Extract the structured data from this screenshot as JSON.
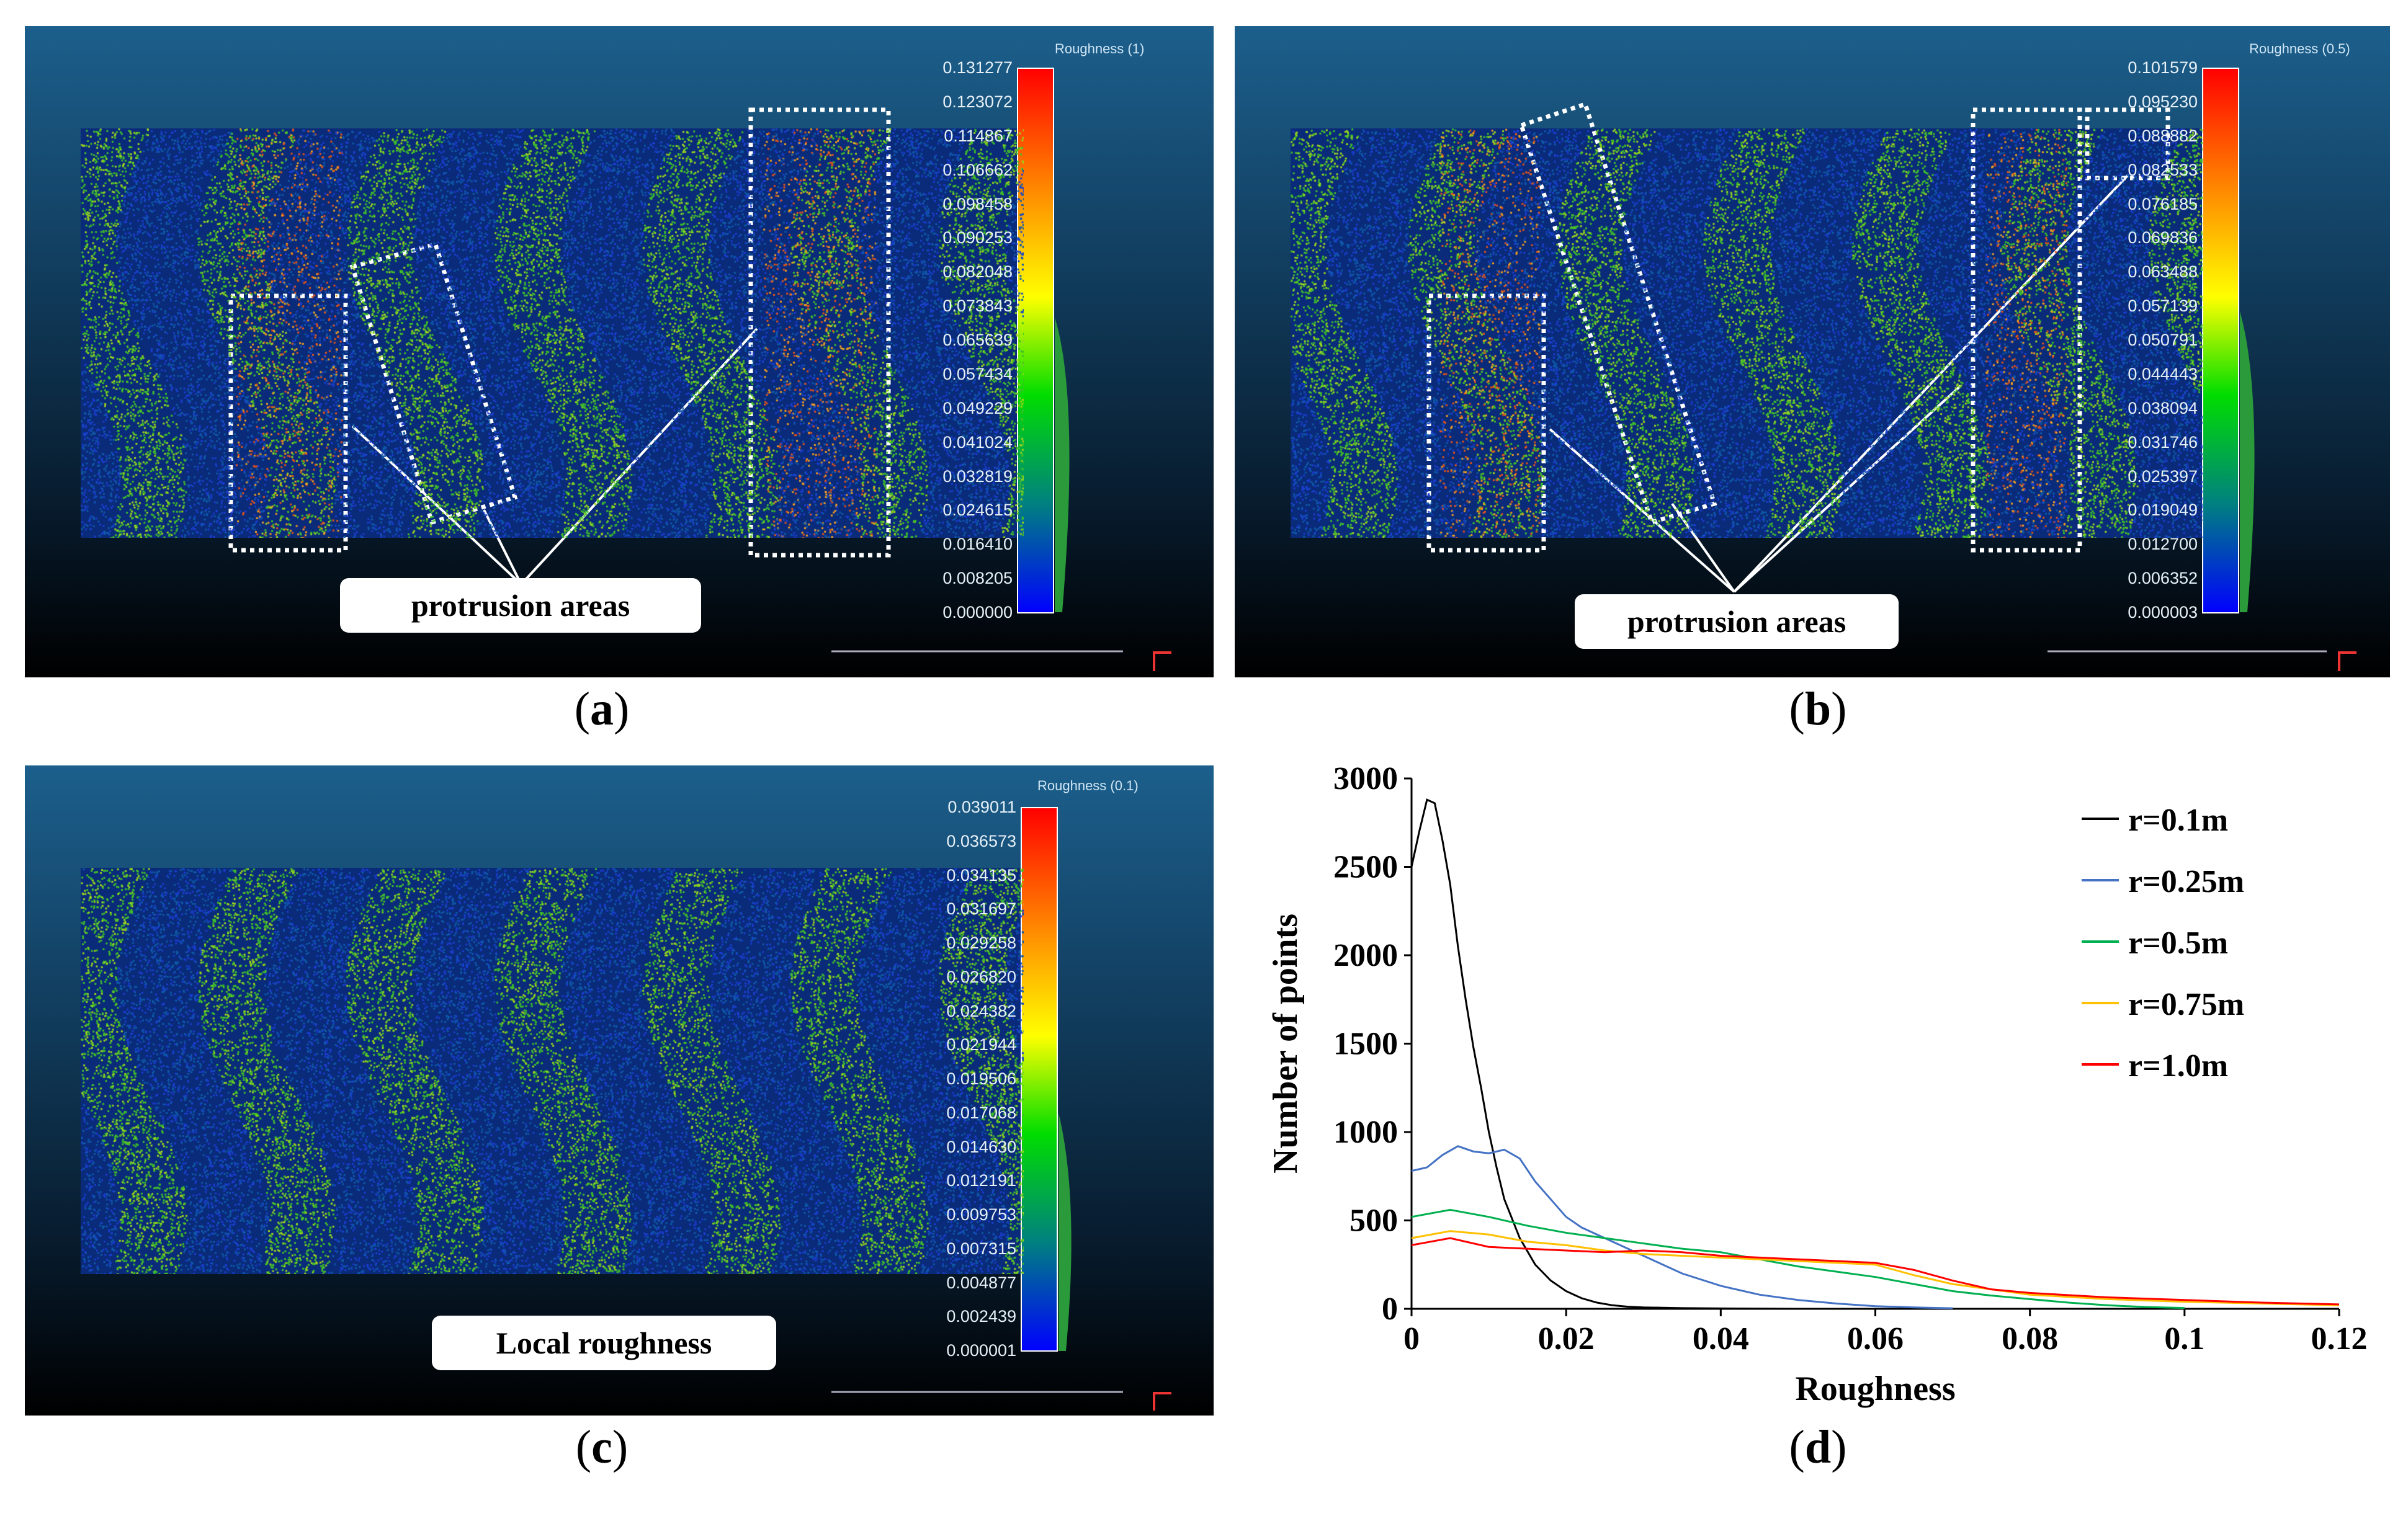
{
  "panels": {
    "a": {
      "caption_letter": "a",
      "colorbar_title": "Roughness (1)",
      "ticks": [
        "0.131277",
        "0.123072",
        "0.114867",
        "0.106662",
        "0.098458",
        "0.090253",
        "0.082048",
        "0.073843",
        "0.065639",
        "0.057434",
        "0.049229",
        "0.041024",
        "0.032819",
        "0.024615",
        "0.016410",
        "0.008205",
        "0.000000"
      ],
      "callout": "protrusion areas"
    },
    "b": {
      "caption_letter": "b",
      "colorbar_title": "Roughness (0.5)",
      "ticks": [
        "0.101579",
        "0.095230",
        "0.088882",
        "0.082533",
        "0.076185",
        "0.069836",
        "0.063488",
        "0.057139",
        "0.050791",
        "0.044443",
        "0.038094",
        "0.031746",
        "0.025397",
        "0.019049",
        "0.012700",
        "0.006352",
        "0.000003"
      ],
      "callout": "protrusion areas"
    },
    "c": {
      "caption_letter": "c",
      "colorbar_title": "Roughness (0.1)",
      "ticks": [
        "0.039011",
        "0.036573",
        "0.034135",
        "0.031697",
        "0.029258",
        "0.026820",
        "0.024382",
        "0.021944",
        "0.019506",
        "0.017068",
        "0.014630",
        "0.012191",
        "0.009753",
        "0.007315",
        "0.004877",
        "0.002439",
        "0.000001"
      ],
      "callout": "Local roughness"
    },
    "d": {
      "caption_letter": "d"
    }
  },
  "chart_data": {
    "type": "line",
    "title": "",
    "xlabel": "Roughness",
    "ylabel": "Number of points",
    "xlim": [
      0,
      0.12
    ],
    "ylim": [
      0,
      3000
    ],
    "x_ticks": [
      "0",
      "0.02",
      "0.04",
      "0.06",
      "0.08",
      "0.1",
      "0.12"
    ],
    "y_ticks": [
      "0",
      "500",
      "1000",
      "1500",
      "2000",
      "2500",
      "3000"
    ],
    "legend_position": "top-right",
    "series": [
      {
        "name": "r=0.1m",
        "color": "#000000",
        "x": [
          0,
          0.001,
          0.002,
          0.003,
          0.004,
          0.005,
          0.006,
          0.007,
          0.008,
          0.009,
          0.01,
          0.011,
          0.012,
          0.014,
          0.016,
          0.018,
          0.02,
          0.022,
          0.024,
          0.026,
          0.028,
          0.03,
          0.035,
          0.04,
          0.05
        ],
        "values": [
          2500,
          2700,
          2880,
          2860,
          2650,
          2400,
          2050,
          1750,
          1480,
          1250,
          1000,
          800,
          620,
          400,
          250,
          160,
          100,
          60,
          35,
          20,
          12,
          8,
          4,
          2,
          0
        ]
      },
      {
        "name": "r=0.25m",
        "color": "#4472c4",
        "x": [
          0,
          0.002,
          0.004,
          0.006,
          0.008,
          0.01,
          0.012,
          0.014,
          0.016,
          0.018,
          0.02,
          0.022,
          0.025,
          0.028,
          0.03,
          0.035,
          0.04,
          0.045,
          0.05,
          0.055,
          0.06,
          0.065,
          0.07
        ],
        "values": [
          780,
          800,
          870,
          920,
          890,
          880,
          900,
          850,
          720,
          620,
          520,
          460,
          400,
          340,
          300,
          200,
          130,
          80,
          50,
          30,
          15,
          8,
          3
        ]
      },
      {
        "name": "r=0.5m",
        "color": "#00b050",
        "x": [
          0,
          0.005,
          0.01,
          0.015,
          0.02,
          0.025,
          0.03,
          0.035,
          0.04,
          0.045,
          0.05,
          0.055,
          0.06,
          0.065,
          0.07,
          0.075,
          0.08,
          0.085,
          0.09,
          0.095,
          0.1
        ],
        "values": [
          520,
          560,
          520,
          470,
          430,
          400,
          370,
          340,
          320,
          280,
          240,
          210,
          180,
          140,
          100,
          75,
          55,
          35,
          20,
          10,
          5
        ]
      },
      {
        "name": "r=0.75m",
        "color": "#ffc000",
        "x": [
          0,
          0.005,
          0.01,
          0.015,
          0.02,
          0.025,
          0.03,
          0.035,
          0.04,
          0.045,
          0.05,
          0.055,
          0.06,
          0.065,
          0.07,
          0.075,
          0.08,
          0.09,
          0.1,
          0.11,
          0.12
        ],
        "values": [
          400,
          440,
          420,
          380,
          360,
          330,
          310,
          300,
          290,
          280,
          270,
          260,
          250,
          190,
          140,
          110,
          80,
          55,
          40,
          30,
          20
        ]
      },
      {
        "name": "r=1.0m",
        "color": "#ff0000",
        "x": [
          0,
          0.005,
          0.01,
          0.015,
          0.02,
          0.025,
          0.03,
          0.035,
          0.04,
          0.045,
          0.05,
          0.055,
          0.06,
          0.065,
          0.07,
          0.075,
          0.08,
          0.09,
          0.1,
          0.11,
          0.12
        ],
        "values": [
          360,
          400,
          350,
          340,
          330,
          320,
          330,
          320,
          300,
          290,
          280,
          270,
          260,
          220,
          160,
          110,
          90,
          65,
          50,
          35,
          25
        ]
      }
    ]
  }
}
